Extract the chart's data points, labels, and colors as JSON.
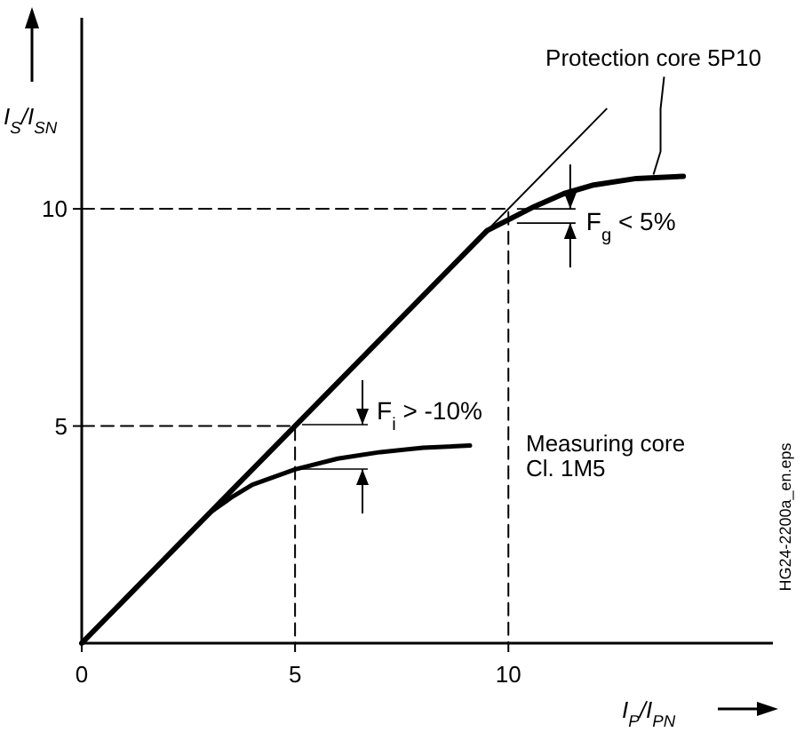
{
  "chart_data": {
    "type": "line",
    "xlabel": "I$_{P}$/I$_{PN}$",
    "ylabel": "I$_{S}$/I$_{SN}$",
    "xlim": [
      0,
      16.2
    ],
    "ylim": [
      0,
      14.4
    ],
    "xticks": [
      0,
      5,
      10
    ],
    "yticks": [
      5,
      10
    ],
    "marker": "none",
    "series": [
      {
        "color": "#000000",
        "line_style": "solid",
        "x": [
          0,
          12.3
        ],
        "values": [
          0,
          12.3
        ]
      },
      {
        "color": "#000000",
        "line_style": "solid",
        "x": [
          0,
          9.5,
          10,
          10.6,
          11.3,
          12,
          13,
          14.1
        ],
        "values": [
          0,
          9.5,
          9.75,
          10.05,
          10.35,
          10.55,
          10.7,
          10.75
        ]
      },
      {
        "color": "#000000",
        "line_style": "solid",
        "x": [
          0,
          3,
          3.5,
          4,
          5,
          6,
          7,
          8,
          9.1
        ],
        "values": [
          0,
          3,
          3.35,
          3.65,
          4,
          4.25,
          4.4,
          4.5,
          4.55
        ]
      },
      {
        "color": "#000000",
        "line_style": "dashed",
        "x": [
          0,
          10,
          10
        ],
        "values": [
          10,
          10,
          0
        ]
      },
      {
        "color": "#000000",
        "line_style": "dashed",
        "x": [
          0,
          5,
          5
        ],
        "values": [
          5,
          5,
          0
        ]
      }
    ],
    "annotations": [
      {
        "text": "Protection core 5P10",
        "x": 13.4,
        "y": 10.75
      },
      {
        "text": "F$_{g}$ < 5%",
        "x": 10.2,
        "y": 10
      },
      "F$_{i}$ > -10%",
      "Measuring core\nCl. 1M5",
      "HG24-2200a_en.eps"
    ]
  }
}
